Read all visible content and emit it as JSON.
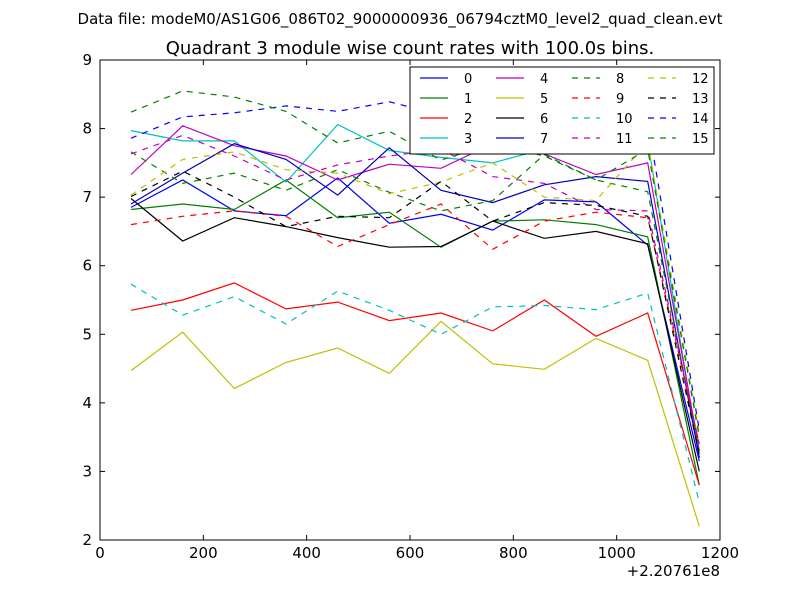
{
  "figure": {
    "suptitle": "Data file: modeM0/AS1G06_086T02_9000000936_06794cztM0_level2_quad_clean.evt",
    "offset_label": "+2.20761e8"
  },
  "chart_data": {
    "type": "line",
    "title": "Quadrant 3 module wise count rates with 100.0s bins.",
    "xlabel": "",
    "ylabel": "",
    "xlim": [
      0,
      1200
    ],
    "ylim": [
      2,
      9
    ],
    "xticks": [
      0,
      200,
      400,
      600,
      800,
      1000,
      1200
    ],
    "yticks": [
      2,
      3,
      4,
      5,
      6,
      7,
      8,
      9
    ],
    "legend_position": "top-right",
    "x": [
      60,
      160,
      260,
      360,
      460,
      560,
      660,
      760,
      860,
      960,
      1060,
      1160
    ],
    "series": [
      {
        "name": "0",
        "color": "#0000ff",
        "dash": "solid",
        "values": [
          6.85,
          7.25,
          6.8,
          6.73,
          7.28,
          6.62,
          6.75,
          6.52,
          6.96,
          6.93,
          6.3,
          3.15
        ]
      },
      {
        "name": "1",
        "color": "#008000",
        "dash": "solid",
        "values": [
          6.82,
          6.9,
          6.82,
          7.25,
          6.7,
          6.78,
          6.27,
          6.65,
          6.67,
          6.6,
          6.42,
          2.8
        ]
      },
      {
        "name": "2",
        "color": "#ff0000",
        "dash": "solid",
        "values": [
          5.35,
          5.5,
          5.75,
          5.37,
          5.47,
          5.2,
          5.31,
          5.05,
          5.5,
          4.97,
          5.31,
          2.8
        ]
      },
      {
        "name": "3",
        "color": "#00bfbf",
        "dash": "solid",
        "values": [
          7.97,
          7.82,
          7.82,
          7.22,
          8.06,
          7.68,
          7.58,
          7.5,
          7.7,
          7.9,
          7.82,
          3.2
        ]
      },
      {
        "name": "4",
        "color": "#bf00bf",
        "dash": "solid",
        "values": [
          7.33,
          8.04,
          7.75,
          7.6,
          7.25,
          7.48,
          7.42,
          7.78,
          7.63,
          7.33,
          7.5,
          3.3
        ]
      },
      {
        "name": "5",
        "color": "#bfbf00",
        "dash": "solid",
        "values": [
          4.47,
          5.03,
          4.21,
          4.59,
          4.8,
          4.43,
          5.19,
          4.57,
          4.49,
          4.94,
          4.62,
          2.2
        ]
      },
      {
        "name": "6",
        "color": "#000000",
        "dash": "solid",
        "values": [
          6.98,
          6.36,
          6.7,
          6.57,
          6.41,
          6.27,
          6.28,
          6.65,
          6.4,
          6.5,
          6.32,
          3.0
        ]
      },
      {
        "name": "7",
        "color": "#0000bf",
        "dash": "solid",
        "values": [
          6.9,
          7.35,
          7.78,
          7.55,
          7.03,
          7.72,
          7.1,
          6.92,
          7.18,
          7.3,
          7.23,
          3.2
        ]
      },
      {
        "name": "8",
        "color": "#008000",
        "dash": "dashed",
        "values": [
          7.66,
          7.2,
          7.35,
          7.1,
          7.4,
          7.07,
          6.8,
          6.95,
          7.62,
          7.25,
          7.08,
          3.3
        ]
      },
      {
        "name": "9",
        "color": "#ff0000",
        "dash": "dashed",
        "values": [
          6.6,
          6.72,
          6.8,
          6.72,
          6.28,
          6.6,
          6.9,
          6.24,
          6.65,
          6.78,
          6.7,
          3.4
        ]
      },
      {
        "name": "10",
        "color": "#00bfbf",
        "dash": "dashed",
        "values": [
          5.73,
          5.28,
          5.55,
          5.15,
          5.63,
          5.35,
          5.0,
          5.4,
          5.42,
          5.36,
          5.6,
          2.55
        ]
      },
      {
        "name": "11",
        "color": "#bf00bf",
        "dash": "dashed",
        "values": [
          7.63,
          7.9,
          7.6,
          7.25,
          7.47,
          7.6,
          7.7,
          7.3,
          7.2,
          6.82,
          6.8,
          3.4
        ]
      },
      {
        "name": "12",
        "color": "#bfbf00",
        "dash": "dashed",
        "values": [
          7.03,
          7.55,
          7.66,
          7.4,
          7.35,
          7.05,
          7.22,
          7.5,
          7.0,
          6.95,
          7.8,
          3.55
        ]
      },
      {
        "name": "13",
        "color": "#000000",
        "dash": "dashed",
        "values": [
          7.01,
          7.38,
          7.0,
          6.57,
          6.72,
          6.7,
          7.23,
          6.65,
          6.92,
          6.88,
          6.72,
          3.25
        ]
      },
      {
        "name": "14",
        "color": "#0000ff",
        "dash": "dashed",
        "values": [
          7.86,
          8.17,
          8.23,
          8.33,
          8.25,
          8.39,
          8.2,
          8.23,
          8.17,
          8.16,
          8.11,
          3.6
        ]
      },
      {
        "name": "15",
        "color": "#008000",
        "dash": "dashed",
        "values": [
          8.24,
          8.55,
          8.46,
          8.25,
          7.79,
          7.96,
          7.54,
          7.78,
          7.6,
          7.25,
          7.7,
          3.5
        ]
      }
    ]
  }
}
